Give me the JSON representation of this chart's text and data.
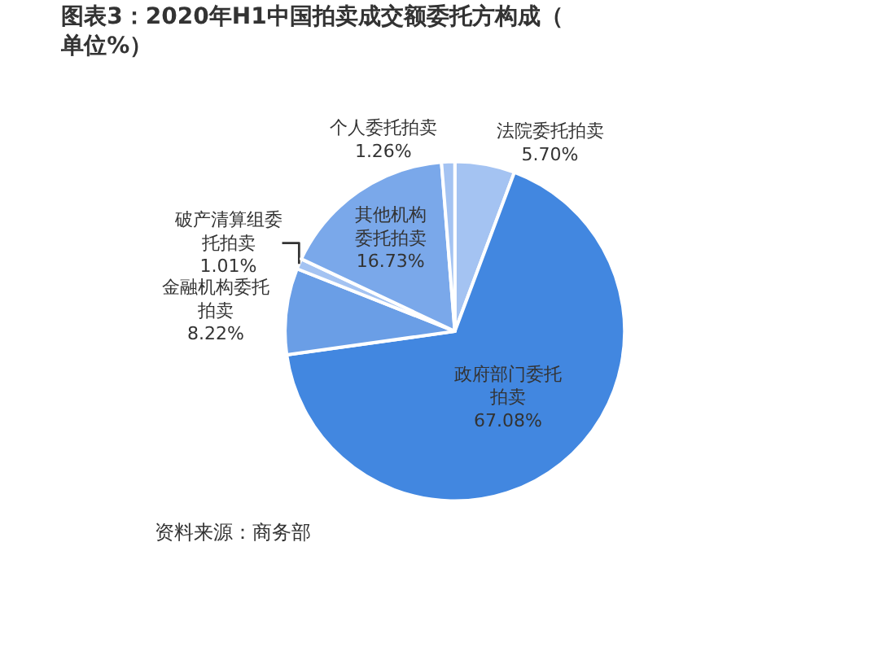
{
  "chart_data": {
    "type": "pie",
    "title": "图表3：2020年H1中国拍卖成交额委托方构成（单位%）",
    "categories": [
      "法院委托拍卖",
      "政府部门委托拍卖",
      "金融机构委托拍卖",
      "破产清算组委托拍卖",
      "其他机构委托拍卖",
      "个人委托拍卖"
    ],
    "values": [
      5.7,
      67.08,
      8.22,
      1.01,
      16.73,
      1.26
    ],
    "value_labels": [
      "5.70%",
      "67.08%",
      "8.22%",
      "1.01%",
      "16.73%",
      "1.26%"
    ],
    "colors": [
      "#a4c3f2",
      "#4287e0",
      "#6a9ee6",
      "#a4c3f2",
      "#7aa8ea",
      "#a4c3f2"
    ],
    "legend": false,
    "annotations": [
      "资料来源：商务部"
    ]
  }
}
